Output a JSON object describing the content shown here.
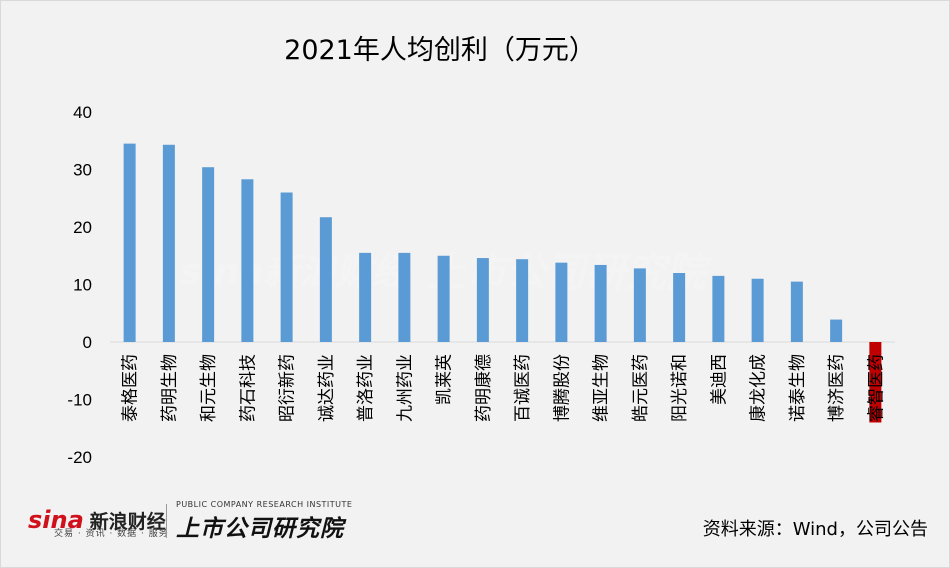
{
  "chart_data": {
    "type": "bar",
    "title": "2021年人均创利（万元）",
    "categories": [
      "泰格医药",
      "药明生物",
      "和元生物",
      "药石科技",
      "昭衍新药",
      "诚达药业",
      "普洛药业",
      "九州药业",
      "凯莱英",
      "药明康德",
      "百诚医药",
      "博腾股份",
      "维亚生物",
      "皓元医药",
      "阳光诺和",
      "美迪西",
      "康龙化成",
      "诺泰生物",
      "博济医药",
      "睿智医药"
    ],
    "values": [
      34.5,
      34.3,
      30.4,
      28.3,
      26.0,
      21.7,
      15.5,
      15.5,
      15.0,
      14.6,
      14.4,
      13.8,
      13.4,
      12.8,
      12.0,
      11.5,
      11.0,
      10.5,
      3.9,
      -14.0
    ],
    "ylim": [
      -20,
      40
    ],
    "yticks": [
      40,
      30,
      20,
      10,
      0,
      -10,
      -20
    ],
    "grid": false,
    "colors": {
      "default": "#5b9bd5",
      "negative": "#c00000"
    }
  },
  "watermark": {
    "brand": "sina新浪财经",
    "institute": "上市公司研究院"
  },
  "logos": {
    "sina_word": "sina",
    "sina_cn": "新浪财经",
    "sina_sub": "交易 · 资讯 · 数据 · 服务",
    "institute_en": "PUBLIC COMPANY RESEARCH INSTITUTE",
    "institute_cn": "上市公司研究院"
  },
  "source": "资料来源：Wind，公司公告"
}
